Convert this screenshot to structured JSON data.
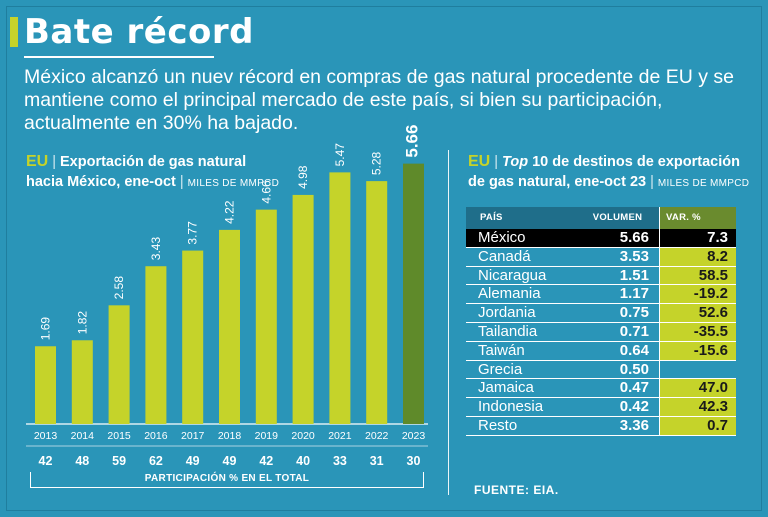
{
  "header": {
    "title": "Bate récord",
    "intro": "México alcanzó un nuev récord en compras de gas natural procedente de EU y se mantiene como el principal mercado de este país, si bien su participación, actualmente en 30% ha bajado."
  },
  "left_section": {
    "prefix": "EU",
    "title_line1": "Exportación de gas natural",
    "title_line2": "hacia México, ene-oct",
    "units": "MILES DE MMPCD",
    "participation_label": "PARTICIPACIÓN % EN EL TOTAL"
  },
  "right_section": {
    "prefix": "EU",
    "title_italic": "Top",
    "title_rest": " 10 de destinos de exportación",
    "title_line2": "de gas natural, ene-oct 23",
    "units": "MILES DE MMPCD",
    "source": "FUENTE: EIA."
  },
  "colors": {
    "background": "#2a95b8",
    "bar": "#c5d32a",
    "bar_highlight": "#5f8a2a",
    "accent": "#c5d32a"
  },
  "chart_data": [
    {
      "type": "bar",
      "title": "Exportación de gas natural hacia México, ene-oct",
      "ylabel": "MILES DE MMPCD",
      "xlabel": "",
      "categories": [
        "2013",
        "2014",
        "2015",
        "2016",
        "2017",
        "2018",
        "2019",
        "2020",
        "2021",
        "2022",
        "2023"
      ],
      "values": [
        1.69,
        1.82,
        2.58,
        3.43,
        3.77,
        4.22,
        4.66,
        4.98,
        5.47,
        5.28,
        5.66
      ],
      "value_labels": [
        "1.69",
        "1.82",
        "2.58",
        "3.43",
        "3.77",
        "4.22",
        "4.66",
        "4.98",
        "5.47",
        "5.28",
        "5.66"
      ],
      "participation_pct": [
        "42",
        "48",
        "59",
        "62",
        "49",
        "49",
        "42",
        "40",
        "33",
        "31",
        "30"
      ],
      "ylim": [
        0,
        6
      ],
      "grid": false,
      "highlight_index": 10
    },
    {
      "type": "table",
      "title": "Top 10 de destinos de exportación de gas natural, ene-oct 23",
      "columns": [
        "PAÍS",
        "VOLUMEN",
        "VAR. %"
      ],
      "rows": [
        {
          "country": "México",
          "volume": "5.66",
          "var": "7.3",
          "highlight": true
        },
        {
          "country": "Canadá",
          "volume": "3.53",
          "var": "8.2"
        },
        {
          "country": "Nicaragua",
          "volume": "1.51",
          "var": "58.5"
        },
        {
          "country": "Alemania",
          "volume": "1.17",
          "var": "-19.2"
        },
        {
          "country": "Jordania",
          "volume": "0.75",
          "var": "52.6"
        },
        {
          "country": "Tailandia",
          "volume": "0.71",
          "var": "-35.5"
        },
        {
          "country": "Taiwán",
          "volume": "0.64",
          "var": "-15.6"
        },
        {
          "country": "Grecia",
          "volume": "0.50",
          "var": ""
        },
        {
          "country": "Jamaica",
          "volume": "0.47",
          "var": "47.0"
        },
        {
          "country": "Indonesia",
          "volume": "0.42",
          "var": "42.3"
        },
        {
          "country": "Resto",
          "volume": "3.36",
          "var": "0.7"
        }
      ]
    }
  ]
}
